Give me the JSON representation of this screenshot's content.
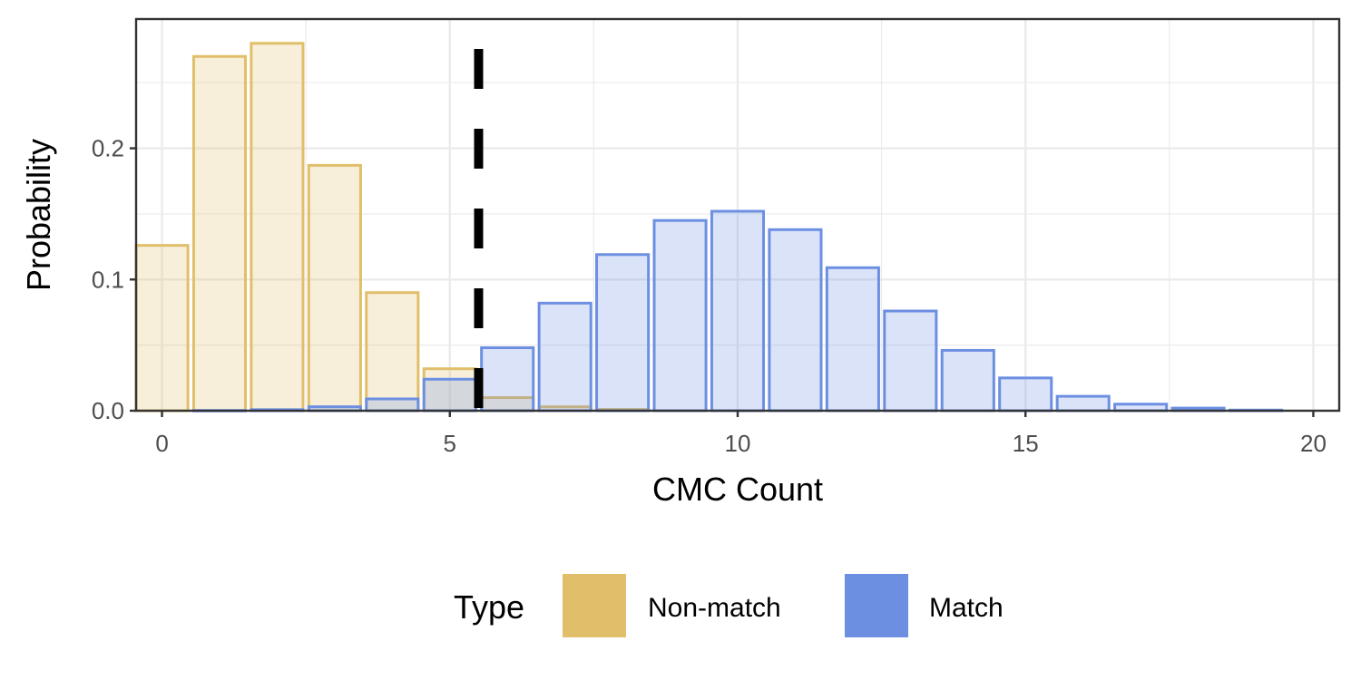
{
  "chart_data": {
    "type": "bar",
    "title": "",
    "xlabel": "CMC Count",
    "ylabel": "Probability",
    "xlim": [
      -0.45,
      20.45
    ],
    "ylim": [
      0,
      0.2985
    ],
    "x_ticks": [
      0,
      5,
      10,
      15,
      20
    ],
    "x_tick_labels": [
      "0",
      "5",
      "10",
      "15",
      "20"
    ],
    "y_ticks": [
      0.0,
      0.1,
      0.2
    ],
    "y_tick_labels": [
      "0.0",
      "0.1",
      "0.2"
    ],
    "grid": true,
    "threshold": 5.5,
    "legend": {
      "title": "Type",
      "position": "bottom",
      "entries": [
        {
          "label": "Non-match",
          "color": "#E1BE6A"
        },
        {
          "label": "Match",
          "color": "#6D8FE2"
        }
      ]
    },
    "series": [
      {
        "name": "Non-match",
        "color": "#E1BE6A",
        "x": [
          0,
          1,
          2,
          3,
          4,
          5,
          6,
          7,
          8
        ],
        "values": [
          0.126,
          0.27,
          0.28,
          0.187,
          0.09,
          0.032,
          0.01,
          0.003,
          0.001
        ]
      },
      {
        "name": "Match",
        "color": "#6D8FE2",
        "x": [
          1,
          2,
          3,
          4,
          5,
          6,
          7,
          8,
          9,
          10,
          11,
          12,
          13,
          14,
          15,
          16,
          17,
          18,
          19
        ],
        "values": [
          0.0002,
          0.0008,
          0.003,
          0.009,
          0.024,
          0.048,
          0.082,
          0.119,
          0.145,
          0.152,
          0.138,
          0.109,
          0.076,
          0.046,
          0.025,
          0.011,
          0.005,
          0.002,
          0.0005
        ]
      }
    ]
  }
}
